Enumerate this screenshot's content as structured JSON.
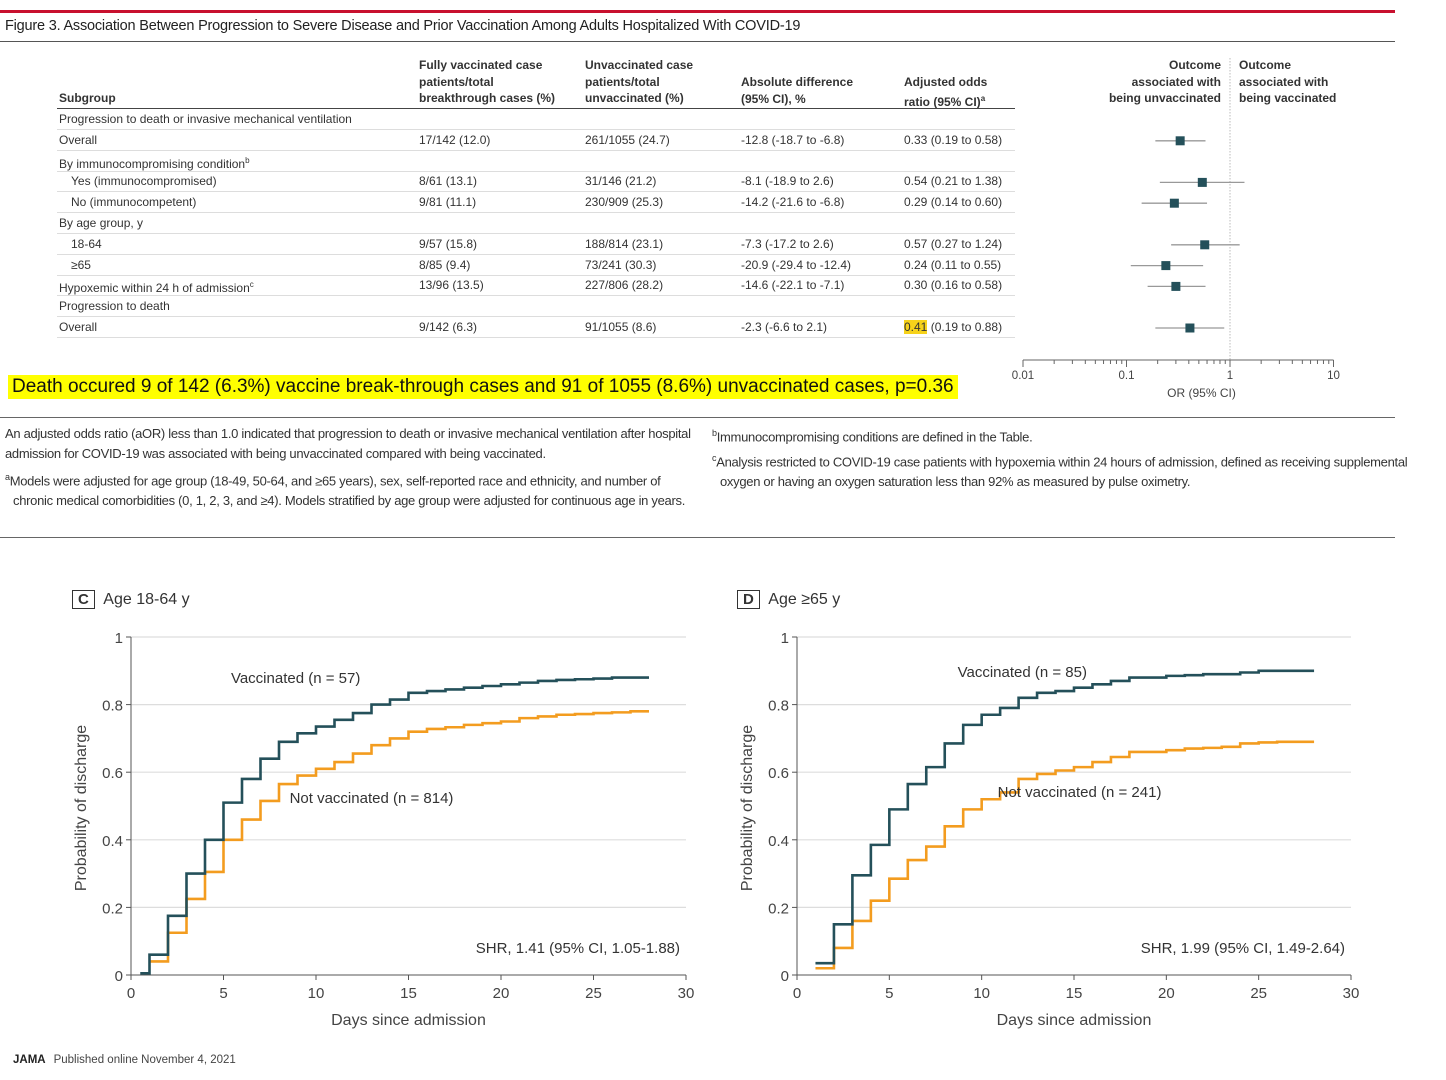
{
  "title": "Figure 3. Association Between Progression to Severe Disease and Prior Vaccination Among Adults Hospitalized With COVID-19",
  "table": {
    "headers": {
      "subgroup": "Subgroup",
      "vacc": [
        "Fully vaccinated case",
        "patients/total",
        "breakthrough cases (%)"
      ],
      "unvacc": [
        "Unvaccinated case",
        "patients/total",
        "unvaccinated (%)"
      ],
      "diff": [
        "Absolute difference",
        "(95% CI), %"
      ],
      "aor": [
        "Adjusted odds",
        "ratio (95% CI)"
      ],
      "aor_sup": "a",
      "left_outcome": [
        "Outcome",
        "associated with",
        "being unvaccinated"
      ],
      "right_outcome": [
        "Outcome",
        "associated with",
        "being vaccinated"
      ]
    },
    "rows": [
      {
        "subgroup": "Progression to death or invasive mechanical ventilation",
        "indent": 0
      },
      {
        "subgroup": "Overall",
        "indent": 0,
        "vacc": "17/142 (12.0)",
        "unvacc": "261/1055 (24.7)",
        "diff": "-12.8 (-18.7 to -6.8)",
        "aor": "0.33 (0.19 to 0.58)"
      },
      {
        "subgroup": "By immunocompromising condition",
        "sup": "b",
        "indent": 0
      },
      {
        "subgroup": "Yes (immunocompromised)",
        "indent": 1,
        "vacc": "8/61 (13.1)",
        "unvacc": "31/146 (21.2)",
        "diff": "-8.1 (-18.9 to 2.6)",
        "aor": "0.54 (0.21 to 1.38)"
      },
      {
        "subgroup": "No (immunocompetent)",
        "indent": 1,
        "vacc": "9/81 (11.1)",
        "unvacc": "230/909 (25.3)",
        "diff": "-14.2 (-21.6 to -6.8)",
        "aor": "0.29 (0.14 to 0.60)"
      },
      {
        "subgroup": "By age group, y",
        "indent": 0
      },
      {
        "subgroup": "18-64",
        "indent": 1,
        "vacc": "9/57 (15.8)",
        "unvacc": "188/814 (23.1)",
        "diff": "-7.3 (-17.2 to 2.6)",
        "aor": "0.57 (0.27 to 1.24)"
      },
      {
        "subgroup": "≥65",
        "indent": 1,
        "vacc": "8/85 (9.4)",
        "unvacc": "73/241 (30.3)",
        "diff": "-20.9 (-29.4 to -12.4)",
        "aor": "0.24 (0.11 to 0.55)"
      },
      {
        "subgroup": "Hypoxemic within 24 h of admission",
        "sup": "c",
        "indent": 0,
        "vacc": "13/96 (13.5)",
        "unvacc": "227/806 (28.2)",
        "diff": "-14.6 (-22.1 to -7.1)",
        "aor": "0.30 (0.16 to 0.58)"
      },
      {
        "subgroup": "Progression to death",
        "indent": 0
      },
      {
        "subgroup": "Overall",
        "indent": 0,
        "vacc": "9/142 (6.3)",
        "unvacc": "91/1055 (8.6)",
        "diff": "-2.3 (-6.6 to 2.1)",
        "aor_highlight": "0.41",
        "aor_rest": " (0.19 to 0.88)"
      }
    ]
  },
  "annotation": "Death occured  9 of 142 (6.3%) vaccine break-through cases and 91 of 1055 (8.6%) unvaccinated cases, p=0.36",
  "notes": {
    "main": "An adjusted odds ratio (aOR) less than 1.0 indicated that progression to death or invasive mechanical ventilation after hospital admission for COVID-19 was associated with being unvaccinated compared with being vaccinated.",
    "a_mark": "a",
    "a": "Models were adjusted for age group (18-49, 50-64, and ≥65 years), sex, self-reported race and ethnicity, and number of chronic medical comorbidities (0, 1, 2, 3, and ≥4). Models stratified by age group were adjusted for continuous age in years.",
    "b_mark": "b",
    "b": "Immunocompromising conditions are defined in the Table.",
    "c_mark": "c",
    "c": "Analysis restricted to COVID-19 case patients with hypoxemia within 24 hours of admission, defined as receiving supplemental oxygen or having an oxygen saturation less than 92% as measured by pulse oximetry."
  },
  "footer": {
    "journal": "JAMA",
    "published": "Published online November 4, 2021"
  },
  "colors": {
    "vaccinated": "#24505a",
    "not_vaccinated": "#f39c1f",
    "accent": "#c8102e",
    "highlight": "#ffff00"
  },
  "chart_data": [
    {
      "type": "scatter",
      "name": "forest-plot",
      "xlabel": "OR (95% CI)",
      "xscale": "log",
      "xlim": [
        0.01,
        10
      ],
      "xticks": [
        "0.01",
        "0.1",
        "1",
        "10"
      ],
      "reference_line": 1,
      "points": [
        {
          "row": 1,
          "label": "Overall",
          "or": 0.33,
          "lo": 0.19,
          "hi": 0.58
        },
        {
          "row": 3,
          "label": "Yes (immunocompromised)",
          "or": 0.54,
          "lo": 0.21,
          "hi": 1.38
        },
        {
          "row": 4,
          "label": "No (immunocompetent)",
          "or": 0.29,
          "lo": 0.14,
          "hi": 0.6
        },
        {
          "row": 6,
          "label": "18-64",
          "or": 0.57,
          "lo": 0.27,
          "hi": 1.24
        },
        {
          "row": 7,
          "label": "≥65",
          "or": 0.24,
          "lo": 0.11,
          "hi": 0.55
        },
        {
          "row": 8,
          "label": "Hypoxemic within 24 h of admission",
          "or": 0.3,
          "lo": 0.16,
          "hi": 0.58
        },
        {
          "row": 10,
          "label": "Overall (death)",
          "or": 0.41,
          "lo": 0.19,
          "hi": 0.88
        }
      ]
    },
    {
      "type": "line",
      "name": "km-age-18-64",
      "panel": "C",
      "title": "Age 18-64 y",
      "xlabel": "Days since admission",
      "ylabel": "Probability of discharge",
      "xlim": [
        0,
        30
      ],
      "ylim": [
        0,
        1
      ],
      "xticks": [
        0,
        5,
        10,
        15,
        20,
        25,
        30
      ],
      "yticks": [
        0,
        0.2,
        0.4,
        0.6,
        0.8,
        1
      ],
      "ytick_labels": [
        "0",
        "0.2",
        "0.4",
        "0.6",
        "0.8",
        "1"
      ],
      "grid": true,
      "annotation": "SHR, 1.41 (95% CI, 1.05-1.88)",
      "series": [
        {
          "name": "Vaccinated (n = 57)",
          "color": "#24505a",
          "steps": [
            [
              0.5,
              0.005
            ],
            [
              1,
              0.06
            ],
            [
              2,
              0.175
            ],
            [
              3,
              0.3
            ],
            [
              4,
              0.4
            ],
            [
              5,
              0.51
            ],
            [
              6,
              0.58
            ],
            [
              7,
              0.64
            ],
            [
              8,
              0.69
            ],
            [
              9,
              0.715
            ],
            [
              10,
              0.735
            ],
            [
              11,
              0.755
            ],
            [
              12,
              0.775
            ],
            [
              13,
              0.8
            ],
            [
              14,
              0.815
            ],
            [
              15,
              0.835
            ],
            [
              16,
              0.84
            ],
            [
              17,
              0.845
            ],
            [
              18,
              0.85
            ],
            [
              19,
              0.855
            ],
            [
              20,
              0.86
            ],
            [
              21,
              0.865
            ],
            [
              22,
              0.87
            ],
            [
              23,
              0.873
            ],
            [
              24,
              0.875
            ],
            [
              25,
              0.877
            ],
            [
              26,
              0.88
            ],
            [
              28,
              0.88
            ]
          ]
        },
        {
          "name": "Not vaccinated (n = 814)",
          "color": "#f39c1f",
          "steps": [
            [
              1,
              0.04
            ],
            [
              2,
              0.125
            ],
            [
              3,
              0.225
            ],
            [
              4,
              0.305
            ],
            [
              5,
              0.4
            ],
            [
              6,
              0.46
            ],
            [
              7,
              0.515
            ],
            [
              8,
              0.565
            ],
            [
              9,
              0.59
            ],
            [
              10,
              0.61
            ],
            [
              11,
              0.63
            ],
            [
              12,
              0.655
            ],
            [
              13,
              0.68
            ],
            [
              14,
              0.7
            ],
            [
              15,
              0.72
            ],
            [
              16,
              0.728
            ],
            [
              17,
              0.733
            ],
            [
              18,
              0.74
            ],
            [
              19,
              0.745
            ],
            [
              20,
              0.75
            ],
            [
              21,
              0.76
            ],
            [
              22,
              0.765
            ],
            [
              23,
              0.77
            ],
            [
              24,
              0.772
            ],
            [
              25,
              0.775
            ],
            [
              26,
              0.777
            ],
            [
              27,
              0.78
            ],
            [
              28,
              0.78
            ]
          ]
        }
      ]
    },
    {
      "type": "line",
      "name": "km-age-65-plus",
      "panel": "D",
      "title": "Age ≥65 y",
      "xlabel": "Days since admission",
      "ylabel": "Probability of discharge",
      "xlim": [
        0,
        30
      ],
      "ylim": [
        0,
        1
      ],
      "xticks": [
        0,
        5,
        10,
        15,
        20,
        25,
        30
      ],
      "yticks": [
        0,
        0.2,
        0.4,
        0.6,
        0.8,
        1
      ],
      "ytick_labels": [
        "0",
        "0.2",
        "0.4",
        "0.6",
        "0.8",
        "1"
      ],
      "grid": true,
      "annotation": "SHR, 1.99 (95% CI, 1.49-2.64)",
      "series": [
        {
          "name": "Vaccinated (n = 85)",
          "color": "#24505a",
          "steps": [
            [
              1,
              0.035
            ],
            [
              2,
              0.15
            ],
            [
              3,
              0.295
            ],
            [
              4,
              0.385
            ],
            [
              5,
              0.49
            ],
            [
              6,
              0.565
            ],
            [
              7,
              0.615
            ],
            [
              8,
              0.685
            ],
            [
              9,
              0.74
            ],
            [
              10,
              0.77
            ],
            [
              11,
              0.79
            ],
            [
              12,
              0.82
            ],
            [
              13,
              0.835
            ],
            [
              14,
              0.84
            ],
            [
              15,
              0.85
            ],
            [
              16,
              0.86
            ],
            [
              17,
              0.87
            ],
            [
              18,
              0.88
            ],
            [
              20,
              0.885
            ],
            [
              21,
              0.887
            ],
            [
              22,
              0.89
            ],
            [
              24,
              0.895
            ],
            [
              25,
              0.9
            ],
            [
              28,
              0.9
            ]
          ]
        },
        {
          "name": "Not vaccinated (n = 241)",
          "color": "#f39c1f",
          "steps": [
            [
              1,
              0.02
            ],
            [
              2,
              0.08
            ],
            [
              3,
              0.16
            ],
            [
              4,
              0.22
            ],
            [
              5,
              0.285
            ],
            [
              6,
              0.34
            ],
            [
              7,
              0.38
            ],
            [
              8,
              0.44
            ],
            [
              9,
              0.49
            ],
            [
              10,
              0.52
            ],
            [
              11,
              0.54
            ],
            [
              12,
              0.58
            ],
            [
              13,
              0.595
            ],
            [
              14,
              0.605
            ],
            [
              15,
              0.615
            ],
            [
              16,
              0.63
            ],
            [
              17,
              0.645
            ],
            [
              18,
              0.66
            ],
            [
              20,
              0.665
            ],
            [
              21,
              0.67
            ],
            [
              22,
              0.672
            ],
            [
              23,
              0.675
            ],
            [
              24,
              0.685
            ],
            [
              25,
              0.688
            ],
            [
              26,
              0.69
            ],
            [
              28,
              0.69
            ]
          ]
        }
      ]
    }
  ]
}
